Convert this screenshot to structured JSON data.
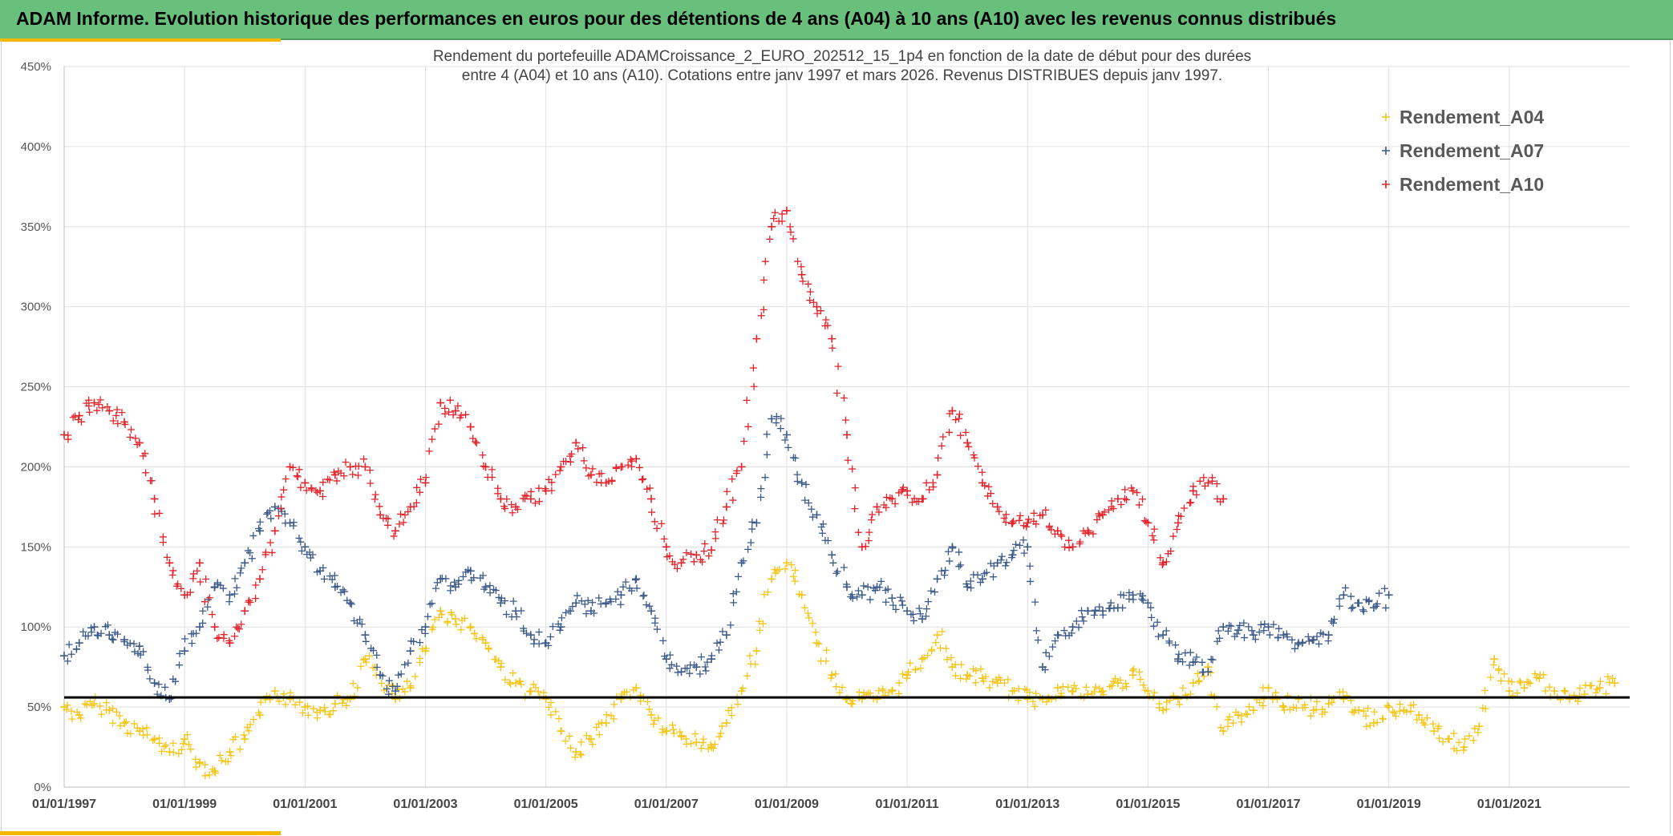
{
  "header": {
    "title": "ADAM Informe. Evolution historique des performances en euros pour des détentions de 4 ans (A04) à 10 ans (A10) avec les revenus connus distribués",
    "bar_color": "#69bf7c",
    "accent_color": "#f5b800"
  },
  "chart_data": {
    "type": "scatter",
    "title_line1": "Rendement du portefeuille ADAMCroissance_2_EURO_202512_15_1p4  en fonction de la date de début pour des durées",
    "title_line2": "entre 4 (A04) et 10 ans (A10). Cotations entre janv 1997 et mars 2026. Revenus DISTRIBUES depuis janv 1997.",
    "x_start_year": 1997,
    "x_end_year": 2023,
    "x_tick_labels": [
      "01/01/1997",
      "01/01/1999",
      "01/01/2001",
      "01/01/2003",
      "01/01/2005",
      "01/01/2007",
      "01/01/2009",
      "01/01/2011",
      "01/01/2013",
      "01/01/2015",
      "01/01/2017",
      "01/01/2019",
      "01/01/2021"
    ],
    "x_tick_years": [
      1997,
      1999,
      2001,
      2003,
      2005,
      2007,
      2009,
      2011,
      2013,
      2015,
      2017,
      2019,
      2021
    ],
    "y_tick_labels": [
      "0%",
      "50%",
      "100%",
      "150%",
      "200%",
      "250%",
      "300%",
      "350%",
      "400%",
      "450%"
    ],
    "y_tick_values": [
      0,
      50,
      100,
      150,
      200,
      250,
      300,
      350,
      400,
      450
    ],
    "ylim": [
      0,
      450
    ],
    "reference_line": 56,
    "marker": "+",
    "legend_position": "top-right",
    "series": [
      {
        "name": "Rendement_A04",
        "color": "#f5c518",
        "x": [
          1997.0,
          1997.25,
          1997.5,
          1997.75,
          1998.0,
          1998.25,
          1998.5,
          1998.75,
          1999.0,
          1999.25,
          1999.5,
          1999.75,
          2000.0,
          2000.25,
          2000.5,
          2000.75,
          2001.0,
          2001.25,
          2001.5,
          2001.75,
          2002.0,
          2002.25,
          2002.5,
          2002.75,
          2003.0,
          2003.25,
          2003.5,
          2003.75,
          2004.0,
          2004.25,
          2004.5,
          2004.75,
          2005.0,
          2005.25,
          2005.5,
          2005.75,
          2006.0,
          2006.25,
          2006.5,
          2006.75,
          2007.0,
          2007.25,
          2007.5,
          2007.75,
          2008.0,
          2008.25,
          2008.5,
          2008.75,
          2009.0,
          2009.25,
          2009.5,
          2009.75,
          2010.0,
          2010.25,
          2010.5,
          2010.75,
          2011.0,
          2011.25,
          2011.5,
          2011.75,
          2012.0,
          2012.25,
          2012.5,
          2012.75,
          2013.0,
          2013.25,
          2013.5,
          2013.75,
          2014.0,
          2014.25,
          2014.5,
          2014.75,
          2015.0,
          2015.25,
          2015.5,
          2015.75,
          2016.0,
          2016.25,
          2016.5,
          2016.75,
          2017.0,
          2017.25,
          2017.5,
          2017.75,
          2018.0,
          2018.25,
          2018.5,
          2018.75,
          2019.0,
          2019.25,
          2019.5,
          2019.75,
          2020.0,
          2020.25,
          2020.5,
          2020.75,
          2021.0,
          2021.25,
          2021.5,
          2021.75,
          2022.0,
          2022.25,
          2022.5,
          2022.75
        ],
        "values": [
          50,
          45,
          52,
          48,
          40,
          35,
          30,
          22,
          30,
          15,
          10,
          22,
          30,
          45,
          60,
          55,
          50,
          48,
          52,
          55,
          80,
          70,
          55,
          62,
          85,
          110,
          105,
          100,
          90,
          75,
          65,
          60,
          55,
          35,
          22,
          30,
          40,
          55,
          62,
          45,
          35,
          32,
          28,
          25,
          40,
          60,
          85,
          130,
          140,
          120,
          90,
          70,
          55,
          55,
          55,
          60,
          70,
          80,
          95,
          75,
          70,
          68,
          65,
          60,
          55,
          55,
          62,
          60,
          58,
          60,
          65,
          70,
          60,
          48,
          55,
          65,
          75,
          35,
          45,
          48,
          62,
          50,
          55,
          48,
          52,
          55,
          48,
          40,
          50,
          48,
          45,
          35,
          30,
          25,
          38,
          80,
          60,
          62,
          68,
          60,
          55,
          58,
          62,
          65
        ]
      },
      {
        "name": "Rendement_A07",
        "color": "#3c5a8a",
        "x": [
          1997.0,
          1997.25,
          1997.5,
          1997.75,
          1998.0,
          1998.25,
          1998.5,
          1998.75,
          1999.0,
          1999.25,
          1999.5,
          1999.75,
          2000.0,
          2000.25,
          2000.5,
          2000.75,
          2001.0,
          2001.25,
          2001.5,
          2001.75,
          2002.0,
          2002.25,
          2002.5,
          2002.75,
          2003.0,
          2003.25,
          2003.5,
          2003.75,
          2004.0,
          2004.25,
          2004.5,
          2004.75,
          2005.0,
          2005.25,
          2005.5,
          2005.75,
          2006.0,
          2006.25,
          2006.5,
          2006.75,
          2007.0,
          2007.25,
          2007.5,
          2007.75,
          2008.0,
          2008.25,
          2008.5,
          2008.75,
          2009.0,
          2009.25,
          2009.5,
          2009.75,
          2010.0,
          2010.25,
          2010.5,
          2010.75,
          2011.0,
          2011.25,
          2011.5,
          2011.75,
          2012.0,
          2012.25,
          2012.5,
          2012.75,
          2013.0,
          2013.25,
          2013.5,
          2013.75,
          2014.0,
          2014.25,
          2014.5,
          2014.75,
          2015.0,
          2015.25,
          2015.5,
          2015.75,
          2016.0,
          2016.25,
          2016.5,
          2016.75,
          2017.0,
          2017.25,
          2017.5,
          2017.75,
          2018.0,
          2018.25,
          2018.5,
          2018.75,
          2019.0
        ],
        "values": [
          82,
          90,
          100,
          95,
          92,
          88,
          65,
          55,
          85,
          100,
          125,
          120,
          140,
          160,
          175,
          165,
          150,
          135,
          125,
          115,
          95,
          70,
          60,
          85,
          100,
          130,
          125,
          135,
          125,
          115,
          110,
          95,
          90,
          100,
          115,
          110,
          115,
          120,
          130,
          110,
          80,
          72,
          75,
          80,
          95,
          140,
          165,
          230,
          220,
          190,
          170,
          145,
          125,
          120,
          125,
          118,
          110,
          105,
          130,
          150,
          125,
          130,
          140,
          145,
          150,
          75,
          95,
          100,
          110,
          110,
          112,
          120,
          115,
          95,
          80,
          78,
          72,
          100,
          98,
          95,
          100,
          95,
          90,
          92,
          95,
          120,
          115,
          112,
          120
        ]
      },
      {
        "name": "Rendement_A10",
        "color": "#e3242b",
        "x": [
          1997.0,
          1997.25,
          1997.5,
          1997.75,
          1998.0,
          1998.25,
          1998.5,
          1998.75,
          1999.0,
          1999.25,
          1999.5,
          1999.75,
          2000.0,
          2000.25,
          2000.5,
          2000.75,
          2001.0,
          2001.25,
          2001.5,
          2001.75,
          2002.0,
          2002.25,
          2002.5,
          2002.75,
          2003.0,
          2003.25,
          2003.5,
          2003.75,
          2004.0,
          2004.25,
          2004.5,
          2004.75,
          2005.0,
          2005.25,
          2005.5,
          2005.75,
          2006.0,
          2006.25,
          2006.5,
          2006.75,
          2007.0,
          2007.25,
          2007.5,
          2007.75,
          2008.0,
          2008.25,
          2008.5,
          2008.75,
          2009.0,
          2009.25,
          2009.5,
          2009.75,
          2010.0,
          2010.25,
          2010.5,
          2010.75,
          2011.0,
          2011.25,
          2011.5,
          2011.75,
          2012.0,
          2012.25,
          2012.5,
          2012.75,
          2013.0,
          2013.25,
          2013.5,
          2013.75,
          2014.0,
          2014.25,
          2014.5,
          2014.75,
          2015.0,
          2015.25,
          2015.5,
          2015.75,
          2016.0,
          2016.25
        ],
        "values": [
          220,
          232,
          240,
          235,
          228,
          215,
          180,
          140,
          120,
          140,
          100,
          90,
          110,
          130,
          160,
          200,
          190,
          185,
          195,
          200,
          200,
          170,
          160,
          175,
          190,
          240,
          235,
          225,
          200,
          180,
          175,
          180,
          185,
          200,
          215,
          195,
          190,
          200,
          205,
          180,
          150,
          140,
          145,
          148,
          175,
          200,
          280,
          350,
          360,
          320,
          300,
          280,
          220,
          150,
          175,
          180,
          185,
          180,
          195,
          235,
          215,
          190,
          175,
          165,
          165,
          170,
          160,
          150,
          160,
          170,
          180,
          185,
          165,
          140,
          165,
          185,
          190,
          180
        ]
      }
    ]
  }
}
